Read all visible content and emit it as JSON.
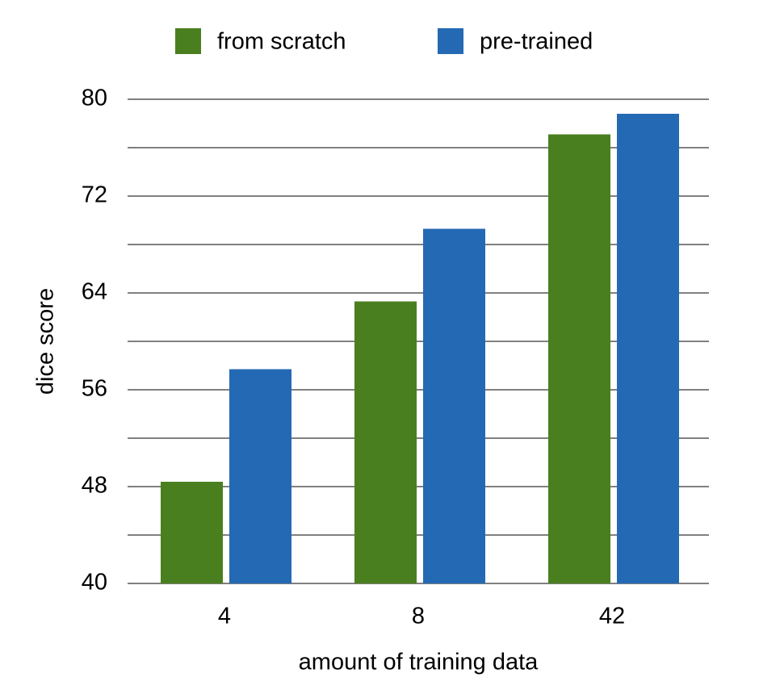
{
  "chart_data": {
    "type": "bar",
    "xlabel": "amount of training data",
    "ylabel": "dice score",
    "categories": [
      "4",
      "8",
      "42"
    ],
    "series": [
      {
        "name": "from scratch",
        "color": "#4a7f1f",
        "values": [
          48.4,
          63.3,
          77.1
        ]
      },
      {
        "name": "pre-trained",
        "color": "#2469b3",
        "values": [
          57.7,
          69.3,
          78.8
        ]
      }
    ],
    "ylim": [
      40,
      80
    ],
    "yticks": [
      40,
      48,
      56,
      64,
      72,
      80
    ],
    "minor_yticks": [
      44,
      52,
      60,
      68,
      76
    ],
    "grid": true,
    "legend": "top"
  }
}
